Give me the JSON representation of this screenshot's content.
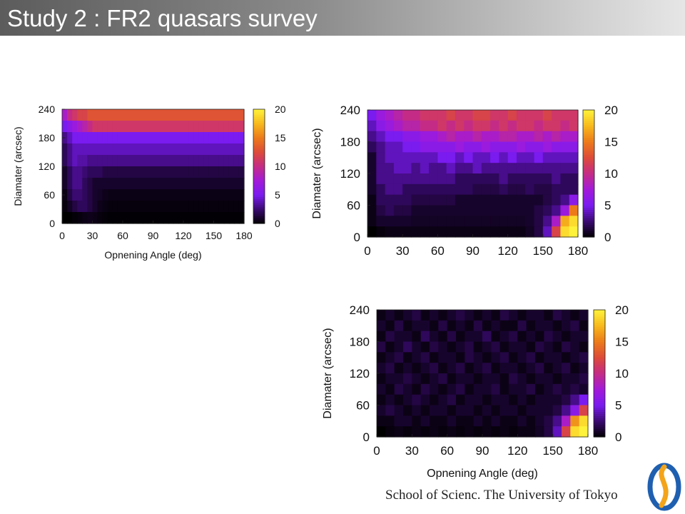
{
  "slide": {
    "title": "Study 2 : FR2 quasars survey",
    "footer": "School of Scienc. The University of Tokyo"
  },
  "colorscale": [
    "#000000",
    "#3a0a70",
    "#7a1bf0",
    "#a21ad9",
    "#c42b86",
    "#dc4a3a",
    "#ec7a1a",
    "#f7b81c",
    "#fff23a"
  ],
  "chart_data": [
    {
      "type": "heatmap",
      "title": "",
      "xlabel": "Opnening Angle (deg)",
      "ylabel": "Diamater (arcsec)",
      "xlim": [
        0,
        180
      ],
      "ylim": [
        0,
        240
      ],
      "clim": [
        0,
        20
      ],
      "xticks": [
        "0",
        "30",
        "60",
        "90",
        "120",
        "150",
        "180"
      ],
      "yticks": [
        "0",
        "60",
        "120",
        "180",
        "240"
      ],
      "cticks": [
        "0",
        "5",
        "10",
        "15",
        "20"
      ],
      "xticks_values": [
        0,
        30,
        60,
        90,
        120,
        150,
        180
      ],
      "yticks_values": [
        0,
        60,
        120,
        180,
        240
      ],
      "cticks_values": [
        0,
        5,
        10,
        15,
        20
      ],
      "x_bins": [
        2.5,
        7.5,
        12.5,
        17.5,
        22.5,
        27.5,
        32.5,
        37.5,
        42.5,
        47.5,
        52.5,
        57.5,
        62.5,
        67.5,
        72.5,
        77.5,
        82.5,
        87.5,
        92.5,
        97.5,
        102.5,
        107.5,
        112.5,
        117.5,
        122.5,
        127.5,
        132.5,
        137.5,
        142.5,
        147.5,
        152.5,
        157.5,
        162.5,
        167.5,
        172.5,
        177.5
      ],
      "y_bins": [
        228,
        204,
        180,
        156,
        132,
        108,
        84,
        60,
        36,
        12
      ],
      "values": [
        [
          8,
          10,
          11,
          12,
          12,
          13,
          13,
          13,
          13,
          13,
          13,
          13,
          13,
          13,
          13,
          13,
          13,
          13,
          13,
          13,
          13,
          13,
          13,
          13,
          13,
          13,
          13,
          13,
          13,
          13,
          13,
          13,
          13,
          13,
          13,
          13
        ],
        [
          5,
          6,
          7,
          8,
          9,
          10,
          11,
          11,
          11,
          11,
          11,
          11,
          11,
          11,
          11,
          11,
          11,
          11,
          11,
          11,
          11,
          11,
          11,
          11,
          11,
          11,
          11,
          11,
          11,
          11,
          11,
          11,
          11,
          11,
          11,
          11
        ],
        [
          3,
          4,
          5,
          5,
          5,
          5,
          5,
          5,
          5,
          5,
          5,
          5,
          5,
          5,
          5,
          5,
          5,
          5,
          5,
          5,
          5,
          5,
          5,
          5,
          5,
          5,
          5,
          5,
          5,
          5,
          5,
          5,
          5,
          5,
          5,
          5
        ],
        [
          2,
          3,
          4,
          4,
          4,
          4,
          4,
          4,
          4,
          4,
          4,
          4,
          4,
          4,
          4,
          4,
          4,
          4,
          4,
          4,
          4,
          4,
          4,
          4,
          4,
          4,
          4,
          4,
          4,
          4,
          4,
          4,
          4,
          4,
          4,
          4
        ],
        [
          2,
          3,
          4,
          3.5,
          3.5,
          3,
          3,
          3,
          3,
          3,
          3,
          3,
          3,
          3,
          3,
          3,
          3,
          3,
          3,
          3,
          3,
          3,
          3,
          3,
          3,
          3,
          3,
          3,
          3,
          3,
          3,
          3,
          3,
          3,
          3,
          3
        ],
        [
          1,
          2,
          3,
          3,
          2.5,
          2,
          2,
          2,
          1.5,
          1.5,
          1.5,
          1.5,
          1.5,
          1.5,
          1.5,
          1.5,
          1.5,
          1.5,
          1.5,
          1.5,
          1.5,
          1.5,
          1.5,
          1.5,
          1.5,
          1.5,
          1.5,
          1.5,
          1.5,
          1.5,
          1.5,
          1.5,
          1.5,
          1.5,
          1.5,
          1.5
        ],
        [
          1,
          2,
          3,
          3,
          2,
          1.5,
          1,
          1,
          1,
          1,
          1,
          1,
          1,
          1,
          1,
          1,
          1,
          1,
          1,
          1,
          1,
          1,
          1,
          1,
          1,
          1,
          1,
          1,
          1,
          1,
          1,
          1,
          1,
          1,
          1,
          1
        ],
        [
          0.5,
          1.5,
          2.5,
          2.5,
          2,
          1.5,
          1,
          0.8,
          0.6,
          0.5,
          0.5,
          0.5,
          0.5,
          0.5,
          0.5,
          0.5,
          0.5,
          0.5,
          0.5,
          0.5,
          0.5,
          0.5,
          0.5,
          0.5,
          0.5,
          0.5,
          0.5,
          0.5,
          0.5,
          0.5,
          0.5,
          0.5,
          0.5,
          0.5,
          0.5,
          0.5
        ],
        [
          0.3,
          0.8,
          1.5,
          2,
          2,
          1.5,
          1,
          0.6,
          0.4,
          0.3,
          0.3,
          0.3,
          0.3,
          0.3,
          0.3,
          0.3,
          0.3,
          0.3,
          0.3,
          0.3,
          0.3,
          0.3,
          0.3,
          0.3,
          0.3,
          0.3,
          0.3,
          0.3,
          0.3,
          0.3,
          0.3,
          0.3,
          0.3,
          0.3,
          0.3,
          0.3
        ],
        [
          0,
          0,
          0.2,
          0.3,
          0.5,
          0.6,
          0.5,
          0.3,
          0.2,
          0.1,
          0.1,
          0.1,
          0.1,
          0.1,
          0.1,
          0.1,
          0.1,
          0.1,
          0.1,
          0.1,
          0.1,
          0.1,
          0.1,
          0.1,
          0.1,
          0.1,
          0.1,
          0.1,
          0.1,
          0.1,
          0.1,
          0.1,
          0.1,
          0.1,
          0.1,
          0.1
        ]
      ]
    },
    {
      "type": "heatmap",
      "title": "",
      "xlabel": "",
      "ylabel": "Diamater (arcsec)",
      "xlim": [
        0,
        180
      ],
      "ylim": [
        0,
        240
      ],
      "clim": [
        0,
        20
      ],
      "xticks": [
        "0",
        "30",
        "60",
        "90",
        "120",
        "150",
        "180"
      ],
      "yticks": [
        "0",
        "60",
        "120",
        "180",
        "240"
      ],
      "cticks": [
        "0",
        "5",
        "10",
        "15",
        "20"
      ],
      "xticks_values": [
        0,
        30,
        60,
        90,
        120,
        150,
        180
      ],
      "yticks_values": [
        0,
        60,
        120,
        180,
        240
      ],
      "cticks_values": [
        0,
        5,
        10,
        15,
        20
      ],
      "x_bins": [
        3.75,
        11.25,
        18.75,
        26.25,
        33.75,
        41.25,
        48.75,
        56.25,
        63.75,
        71.25,
        78.75,
        86.25,
        93.75,
        101.25,
        108.75,
        116.25,
        123.75,
        131.25,
        138.75,
        146.25,
        153.75,
        161.25,
        168.75,
        176.25
      ],
      "y_bins": [
        230,
        210,
        190,
        170,
        150,
        130,
        110,
        90,
        70,
        50,
        30,
        10
      ],
      "values": [
        [
          5,
          7,
          8,
          9,
          10,
          10,
          11,
          11,
          11,
          12,
          11,
          11,
          12,
          12,
          11,
          11,
          12,
          11,
          11,
          11,
          12,
          11,
          11,
          11
        ],
        [
          4,
          6,
          7,
          8,
          9,
          9,
          10,
          10,
          11,
          10,
          11,
          10,
          11,
          11,
          10,
          11,
          10,
          11,
          11,
          10,
          11,
          11,
          10,
          11
        ],
        [
          3,
          4,
          5,
          5,
          6,
          6,
          7,
          7,
          8,
          9,
          8,
          8,
          9,
          8,
          8,
          9,
          9,
          8,
          8,
          9,
          8,
          9,
          8,
          8
        ],
        [
          2,
          3,
          4,
          4,
          5,
          5,
          6,
          6,
          6,
          6,
          7,
          6,
          6,
          7,
          6,
          6,
          6,
          7,
          6,
          6,
          7,
          6,
          6,
          6
        ],
        [
          1,
          3,
          4,
          4,
          4,
          4,
          4,
          4,
          5,
          5,
          4,
          5,
          4,
          4,
          5,
          4,
          5,
          4,
          4,
          5,
          4,
          4,
          4,
          4
        ],
        [
          1,
          3,
          3,
          4,
          4,
          3,
          4,
          3,
          3,
          4,
          3,
          3,
          4,
          3,
          3,
          3,
          3,
          3,
          3,
          3,
          3,
          3,
          3,
          3
        ],
        [
          1,
          3,
          3,
          3,
          3,
          3,
          3,
          3,
          3,
          3,
          2,
          2,
          2,
          2,
          2,
          3,
          2,
          2,
          2,
          2,
          2,
          3,
          2,
          2
        ],
        [
          1,
          2,
          3,
          3,
          2,
          2,
          2,
          2,
          2,
          2,
          2,
          2,
          1.5,
          1.5,
          1.5,
          2,
          1.5,
          1.5,
          2,
          1.5,
          1.5,
          2,
          2,
          2
        ],
        [
          0.5,
          2,
          2,
          2,
          2,
          1.5,
          1.5,
          1.5,
          1.5,
          1.5,
          1,
          1,
          1,
          1,
          1,
          1,
          1,
          1,
          1,
          1,
          1.5,
          2,
          3,
          6
        ],
        [
          0.5,
          1.5,
          2,
          1.5,
          1.5,
          1,
          1,
          1,
          1,
          1,
          1,
          1,
          1,
          1,
          1,
          1,
          1,
          1,
          1,
          1.5,
          2,
          3,
          7,
          15
        ],
        [
          0.5,
          1,
          1,
          1,
          1,
          0.8,
          0.8,
          0.8,
          0.8,
          0.8,
          0.8,
          0.8,
          0.8,
          0.8,
          0.8,
          0.8,
          0.8,
          0.8,
          1,
          1.5,
          3,
          8,
          17,
          19
        ],
        [
          0,
          0.3,
          0.5,
          0.5,
          0.5,
          0.5,
          0.5,
          0.5,
          0.5,
          0.5,
          0.5,
          0.5,
          0.5,
          0.5,
          0.5,
          0.5,
          0.5,
          0.5,
          0.8,
          1.5,
          4,
          12,
          19,
          20
        ]
      ]
    },
    {
      "type": "heatmap",
      "title": "",
      "xlabel": "Opnening Angle (deg)",
      "ylabel": "Diamater (arcsec)",
      "xlim": [
        0,
        180
      ],
      "ylim": [
        0,
        240
      ],
      "clim": [
        0,
        20
      ],
      "xticks": [
        "0",
        "30",
        "60",
        "90",
        "120",
        "150",
        "180"
      ],
      "yticks": [
        "0",
        "60",
        "120",
        "180",
        "240"
      ],
      "cticks": [
        "0",
        "5",
        "10",
        "15",
        "20"
      ],
      "xticks_values": [
        0,
        30,
        60,
        90,
        120,
        150,
        180
      ],
      "yticks_values": [
        0,
        60,
        120,
        180,
        240
      ],
      "cticks_values": [
        0,
        5,
        10,
        15,
        20
      ],
      "x_bins": [
        3.75,
        11.25,
        18.75,
        26.25,
        33.75,
        41.25,
        48.75,
        56.25,
        63.75,
        71.25,
        78.75,
        86.25,
        93.75,
        101.25,
        108.75,
        116.25,
        123.75,
        131.25,
        138.75,
        146.25,
        153.75,
        161.25,
        168.75,
        176.25
      ],
      "y_bins": [
        230,
        210,
        190,
        170,
        150,
        130,
        110,
        90,
        70,
        50,
        30,
        10
      ],
      "values": [
        [
          0.5,
          1,
          0.5,
          1,
          1.5,
          0.5,
          1,
          0.5,
          1,
          1.5,
          1,
          0.5,
          1,
          0.5,
          1.5,
          1,
          0.5,
          1,
          1,
          0.5,
          1.5,
          1,
          0.5,
          1
        ],
        [
          1,
          0.5,
          1.5,
          0.5,
          1,
          1,
          0.5,
          1.5,
          0.5,
          1,
          0.5,
          1.5,
          0.5,
          1,
          0.5,
          0.5,
          1.5,
          0.5,
          1,
          1,
          0.5,
          1,
          1.5,
          0.5
        ],
        [
          0.5,
          1.5,
          1,
          1,
          0.5,
          2,
          1,
          0.5,
          1.5,
          0.5,
          1,
          1,
          2,
          0.5,
          1,
          1.5,
          0.5,
          1,
          0.5,
          1.5,
          1,
          0.5,
          1,
          1
        ],
        [
          1.5,
          0.5,
          1,
          2,
          1,
          0.5,
          1.5,
          1,
          0.5,
          1,
          1.5,
          0.5,
          1,
          1.5,
          0.5,
          1,
          1,
          0.5,
          1.5,
          1,
          0.5,
          1.5,
          1,
          0.5
        ],
        [
          0.5,
          1,
          1.5,
          0.5,
          1,
          1.5,
          0.5,
          1,
          1,
          0.5,
          1.5,
          1,
          0.5,
          1,
          1.5,
          0.5,
          1,
          1.5,
          0.5,
          1,
          1,
          0.5,
          1,
          1.5
        ],
        [
          1,
          1.5,
          0.5,
          1,
          0.5,
          1,
          1.5,
          0.5,
          1,
          1.5,
          0.5,
          1,
          1.5,
          0.5,
          1,
          1,
          0.5,
          1,
          1.5,
          0.5,
          1,
          1.5,
          0.5,
          1
        ],
        [
          0.5,
          1,
          1,
          1.5,
          1,
          0.5,
          1,
          1.5,
          0.5,
          1,
          1,
          0.5,
          1,
          1,
          0.5,
          1.5,
          1,
          0.5,
          1,
          1,
          0.5,
          1,
          1,
          1.5
        ],
        [
          1,
          0.5,
          1.5,
          1,
          0.5,
          1.5,
          1,
          0.5,
          1,
          1.5,
          0.5,
          1,
          1,
          1.5,
          0.5,
          1,
          1,
          1.5,
          0.5,
          1,
          1.5,
          1,
          1.5,
          1
        ],
        [
          0.5,
          1,
          0.5,
          1,
          1.5,
          1,
          0.5,
          1,
          1.5,
          0.5,
          1,
          1,
          0.5,
          1,
          1,
          0.5,
          1,
          0.5,
          1,
          1,
          1,
          1.5,
          3,
          5
        ],
        [
          1,
          1.5,
          1,
          0.5,
          1,
          0.5,
          1,
          1,
          0.5,
          1,
          1,
          0.5,
          1,
          0.5,
          1,
          1,
          0.5,
          1,
          1,
          1,
          1.5,
          3,
          6,
          12
        ],
        [
          0.5,
          0.5,
          1,
          1,
          0.5,
          1,
          0.5,
          0.5,
          1,
          0.5,
          0.5,
          1,
          0.5,
          1,
          0.5,
          0.5,
          1,
          0.5,
          1,
          1.5,
          3,
          8,
          16,
          19
        ],
        [
          0,
          0.3,
          0.5,
          0.3,
          0.5,
          0.3,
          0.5,
          0.3,
          0.5,
          0.3,
          0.5,
          0.3,
          0.5,
          0.3,
          0.5,
          0.3,
          0.5,
          0.5,
          0.8,
          1.5,
          4,
          12,
          19,
          20
        ]
      ]
    }
  ]
}
